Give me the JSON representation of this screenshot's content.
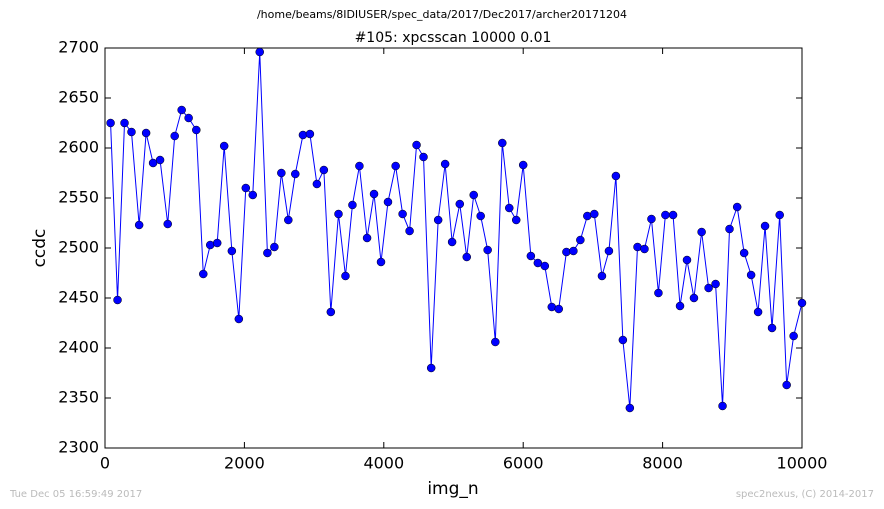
{
  "chart_data": {
    "type": "line",
    "title": "/home/beams/8IDIUSER/spec_data/2017/Dec2017/archer20171204",
    "subtitle": "#105: xpcsscan 10000 0.01",
    "x_label": "img_n",
    "y_label": "ccdc",
    "footer_left": "Tue Dec 05 16:59:49 2017",
    "footer_right": "spec2nexus, (C) 2014-2017",
    "xlim": [
      0,
      10000
    ],
    "xticks": [
      0,
      2000,
      4000,
      6000,
      8000,
      10000
    ],
    "ylim": [
      2300,
      2700
    ],
    "yticks": [
      2300,
      2350,
      2400,
      2450,
      2500,
      2550,
      2600,
      2650,
      2700
    ],
    "color": "#0000ff",
    "x": [
      80,
      180,
      280,
      380,
      490,
      590,
      690,
      790,
      900,
      1000,
      1100,
      1200,
      1310,
      1410,
      1510,
      1610,
      1710,
      1820,
      1920,
      2020,
      2120,
      2220,
      2330,
      2430,
      2530,
      2630,
      2730,
      2840,
      2940,
      3040,
      3140,
      3240,
      3350,
      3450,
      3550,
      3650,
      3760,
      3860,
      3960,
      4060,
      4170,
      4270,
      4370,
      4470,
      4570,
      4680,
      4780,
      4880,
      4980,
      5090,
      5190,
      5290,
      5390,
      5490,
      5600,
      5700,
      5800,
      5900,
      6000,
      6110,
      6210,
      6310,
      6410,
      6510,
      6620,
      6720,
      6820,
      6920,
      7020,
      7130,
      7230,
      7330,
      7430,
      7530,
      7640,
      7740,
      7840,
      7940,
      8040,
      8150,
      8250,
      8350,
      8450,
      8560,
      8660,
      8760,
      8860,
      8960,
      9070,
      9170,
      9270,
      9370,
      9470,
      9570,
      9680,
      9780,
      9880,
      10000
    ],
    "values": [
      2625,
      2448,
      2625,
      2616,
      2523,
      2615,
      2585,
      2588,
      2524,
      2612,
      2638,
      2630,
      2618,
      2474,
      2503,
      2505,
      2602,
      2497,
      2429,
      2560,
      2553,
      2696,
      2495,
      2501,
      2575,
      2528,
      2574,
      2613,
      2614,
      2564,
      2578,
      2436,
      2534,
      2472,
      2543,
      2582,
      2510,
      2554,
      2486,
      2546,
      2582,
      2534,
      2517,
      2603,
      2591,
      2380,
      2528,
      2584,
      2506,
      2544,
      2491,
      2553,
      2532,
      2498,
      2406,
      2605,
      2540,
      2528,
      2583,
      2492,
      2485,
      2482,
      2441,
      2439,
      2496,
      2497,
      2508,
      2532,
      2534,
      2472,
      2497,
      2572,
      2408,
      2340,
      2501,
      2499,
      2529,
      2455,
      2533,
      2533,
      2442,
      2488,
      2450,
      2516,
      2460,
      2464,
      2342,
      2519,
      2541,
      2495,
      2473,
      2436,
      2522,
      2420,
      2533,
      2363,
      2412,
      2445
    ]
  }
}
